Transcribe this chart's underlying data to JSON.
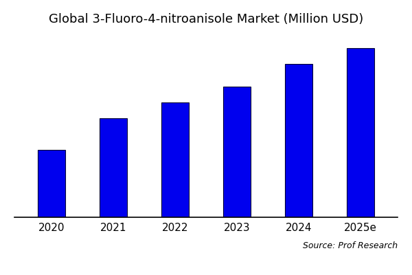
{
  "title": "Global 3-Fluoro-4-nitroanisole Market (Million USD)",
  "categories": [
    "2020",
    "2021",
    "2022",
    "2023",
    "2024",
    "2025e"
  ],
  "values": [
    30,
    44,
    51,
    58,
    68,
    75
  ],
  "bar_color": "#0000EE",
  "bar_edge_color": "#000033",
  "background_color": "#ffffff",
  "source_text": "Source: Prof Research",
  "title_fontsize": 13,
  "tick_fontsize": 11,
  "source_fontsize": 9,
  "ylim": [
    0,
    82
  ],
  "bar_width": 0.45
}
